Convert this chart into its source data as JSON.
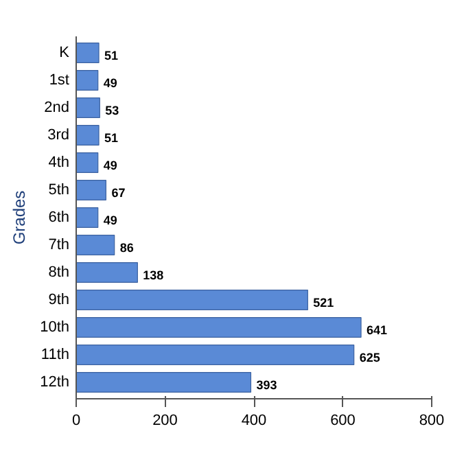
{
  "chart_data": {
    "type": "bar",
    "orientation": "horizontal",
    "ylabel": "Grades",
    "categories": [
      "K",
      "1st",
      "2nd",
      "3rd",
      "4th",
      "5th",
      "6th",
      "7th",
      "8th",
      "9th",
      "10th",
      "11th",
      "12th"
    ],
    "values": [
      51,
      49,
      53,
      51,
      49,
      67,
      49,
      86,
      138,
      521,
      641,
      625,
      393
    ],
    "color": "#5a8ad6",
    "xlim": [
      0,
      800
    ],
    "xticks": [
      0,
      200,
      400,
      600,
      800
    ],
    "data_labels": true,
    "grid": false
  }
}
